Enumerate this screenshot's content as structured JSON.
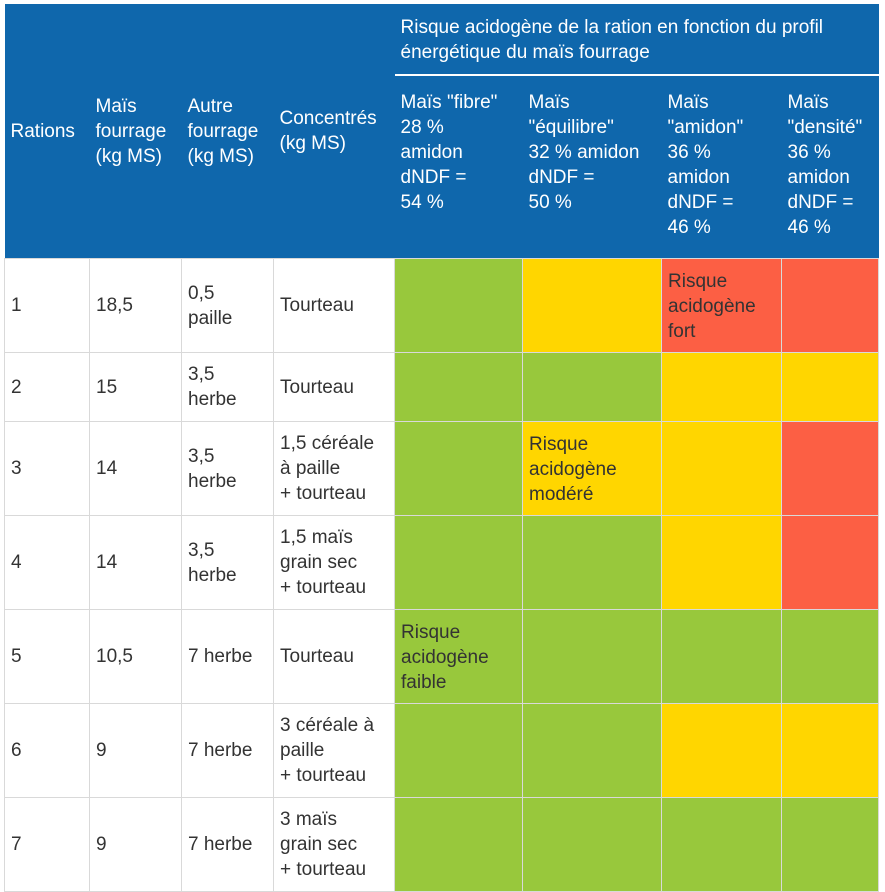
{
  "header": {
    "col_rations": "Rations",
    "col_mais": [
      "Maïs",
      "fourrage",
      "(kg MS)"
    ],
    "col_autre": [
      "Autre",
      "fourrage",
      "(kg MS)"
    ],
    "col_concentres": [
      "Concentrés",
      "(kg MS)"
    ],
    "group_title": [
      "Risque acidogène de la ration en fonction du profil",
      "énergétique du maïs fourrage"
    ],
    "profiles": [
      [
        "Maïs \"fibre\"",
        "28 %",
        "amidon",
        "dNDF =",
        "54 %"
      ],
      [
        "Maïs",
        "\"équilibre\"",
        "32 % amidon",
        "dNDF =",
        "50 %"
      ],
      [
        "Maïs",
        "\"amidon\"",
        "36 %",
        "amidon",
        "dNDF =",
        "46 %"
      ],
      [
        "Maïs",
        "\"densité\"",
        "36 %",
        "amidon",
        "dNDF =",
        "46 %"
      ]
    ]
  },
  "colors": {
    "green": "#98c83c",
    "yellow": "#ffd600",
    "red": "#fc5f44",
    "header": "#0f67ac"
  },
  "rows": [
    {
      "ration": "1",
      "mais": "18,5",
      "autre": [
        "0,5",
        "paille"
      ],
      "concentres": [
        "Tourteau"
      ],
      "risk": [
        "green",
        "yellow",
        "red",
        "red"
      ],
      "labels": [
        null,
        null,
        [
          "Risque",
          "acidogène",
          "fort"
        ],
        null
      ]
    },
    {
      "ration": "2",
      "mais": "15",
      "autre": [
        "3,5",
        "herbe"
      ],
      "concentres": [
        "Tourteau"
      ],
      "risk": [
        "green",
        "green",
        "yellow",
        "yellow"
      ],
      "labels": [
        null,
        null,
        null,
        null
      ]
    },
    {
      "ration": "3",
      "mais": "14",
      "autre": [
        "3,5",
        "herbe"
      ],
      "concentres": [
        "1,5 céréale",
        "à paille",
        "+ tourteau"
      ],
      "risk": [
        "green",
        "yellow",
        "yellow",
        "red"
      ],
      "labels": [
        null,
        [
          "Risque",
          "acidogène",
          "modéré"
        ],
        null,
        null
      ]
    },
    {
      "ration": "4",
      "mais": "14",
      "autre": [
        "3,5",
        "herbe"
      ],
      "concentres": [
        "1,5 maïs",
        "grain sec",
        "+ tourteau"
      ],
      "risk": [
        "green",
        "green",
        "yellow",
        "red"
      ],
      "labels": [
        null,
        null,
        null,
        null
      ]
    },
    {
      "ration": "5",
      "mais": "10,5",
      "autre": [
        "7 herbe"
      ],
      "concentres": [
        "Tourteau"
      ],
      "risk": [
        "green",
        "green",
        "green",
        "green"
      ],
      "labels": [
        [
          "Risque",
          "acidogène",
          "faible"
        ],
        null,
        null,
        null
      ]
    },
    {
      "ration": "6",
      "mais": "9",
      "autre": [
        "7 herbe"
      ],
      "concentres": [
        "3 céréale à",
        "paille",
        "+ tourteau"
      ],
      "risk": [
        "green",
        "green",
        "yellow",
        "yellow"
      ],
      "labels": [
        null,
        null,
        null,
        null
      ]
    },
    {
      "ration": "7",
      "mais": "9",
      "autre": [
        "7 herbe"
      ],
      "concentres": [
        "3 maïs",
        "grain sec",
        "+ tourteau"
      ],
      "risk": [
        "green",
        "green",
        "green",
        "green"
      ],
      "labels": [
        null,
        null,
        null,
        null
      ]
    }
  ]
}
